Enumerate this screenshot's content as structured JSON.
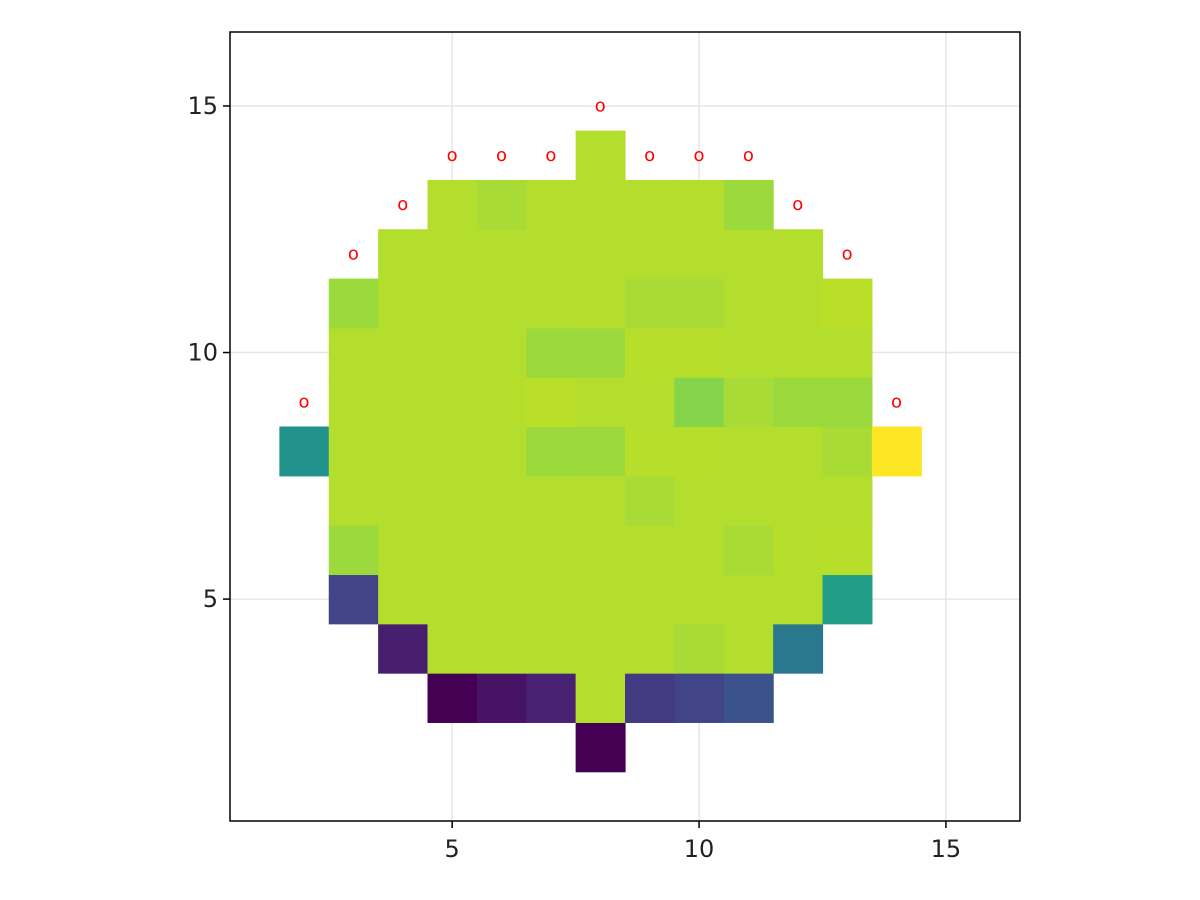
{
  "chart_data": {
    "type": "heatmap",
    "title": "",
    "xlabel": "",
    "ylabel": "",
    "xlim": [
      0.5,
      16.5
    ],
    "ylim": [
      0.5,
      16.5
    ],
    "x_ticks": [
      5,
      10,
      15
    ],
    "y_ticks": [
      5,
      10,
      15
    ],
    "x_tick_labels": [
      "5",
      "10",
      "15"
    ],
    "y_tick_labels": [
      "5",
      "10",
      "15"
    ],
    "grid": true,
    "colormap": "viridis",
    "value_range": [
      0,
      1
    ],
    "cells": [
      {
        "x": 8,
        "y": 2,
        "v": 0.0
      },
      {
        "x": 5,
        "y": 3,
        "v": 0.0
      },
      {
        "x": 6,
        "y": 3,
        "v": 0.05
      },
      {
        "x": 7,
        "y": 3,
        "v": 0.09
      },
      {
        "x": 8,
        "y": 3,
        "v": 0.85
      },
      {
        "x": 9,
        "y": 3,
        "v": 0.17
      },
      {
        "x": 10,
        "y": 3,
        "v": 0.2
      },
      {
        "x": 11,
        "y": 3,
        "v": 0.25
      },
      {
        "x": 4,
        "y": 4,
        "v": 0.08
      },
      {
        "x": 5,
        "y": 4,
        "v": 0.85
      },
      {
        "x": 6,
        "y": 4,
        "v": 0.85
      },
      {
        "x": 7,
        "y": 4,
        "v": 0.85
      },
      {
        "x": 8,
        "y": 4,
        "v": 0.85
      },
      {
        "x": 9,
        "y": 4,
        "v": 0.85
      },
      {
        "x": 10,
        "y": 4,
        "v": 0.84
      },
      {
        "x": 11,
        "y": 4,
        "v": 0.85
      },
      {
        "x": 12,
        "y": 4,
        "v": 0.4
      },
      {
        "x": 3,
        "y": 5,
        "v": 0.2
      },
      {
        "x": 4,
        "y": 5,
        "v": 0.85
      },
      {
        "x": 5,
        "y": 5,
        "v": 0.85
      },
      {
        "x": 6,
        "y": 5,
        "v": 0.85
      },
      {
        "x": 7,
        "y": 5,
        "v": 0.85
      },
      {
        "x": 8,
        "y": 5,
        "v": 0.85
      },
      {
        "x": 9,
        "y": 5,
        "v": 0.85
      },
      {
        "x": 10,
        "y": 5,
        "v": 0.85
      },
      {
        "x": 11,
        "y": 5,
        "v": 0.85
      },
      {
        "x": 12,
        "y": 5,
        "v": 0.85
      },
      {
        "x": 13,
        "y": 5,
        "v": 0.55
      },
      {
        "x": 3,
        "y": 6,
        "v": 0.83
      },
      {
        "x": 4,
        "y": 6,
        "v": 0.85
      },
      {
        "x": 5,
        "y": 6,
        "v": 0.85
      },
      {
        "x": 6,
        "y": 6,
        "v": 0.85
      },
      {
        "x": 7,
        "y": 6,
        "v": 0.85
      },
      {
        "x": 8,
        "y": 6,
        "v": 0.85
      },
      {
        "x": 9,
        "y": 6,
        "v": 0.85
      },
      {
        "x": 10,
        "y": 6,
        "v": 0.85
      },
      {
        "x": 11,
        "y": 6,
        "v": 0.84
      },
      {
        "x": 12,
        "y": 6,
        "v": 0.86
      },
      {
        "x": 13,
        "y": 6,
        "v": 0.87
      },
      {
        "x": 3,
        "y": 7,
        "v": 0.85
      },
      {
        "x": 4,
        "y": 7,
        "v": 0.85
      },
      {
        "x": 5,
        "y": 7,
        "v": 0.85
      },
      {
        "x": 6,
        "y": 7,
        "v": 0.85
      },
      {
        "x": 7,
        "y": 7,
        "v": 0.85
      },
      {
        "x": 8,
        "y": 7,
        "v": 0.86
      },
      {
        "x": 9,
        "y": 7,
        "v": 0.84
      },
      {
        "x": 10,
        "y": 7,
        "v": 0.85
      },
      {
        "x": 11,
        "y": 7,
        "v": 0.85
      },
      {
        "x": 12,
        "y": 7,
        "v": 0.85
      },
      {
        "x": 13,
        "y": 7,
        "v": 0.85
      },
      {
        "x": 2,
        "y": 8,
        "v": 0.5
      },
      {
        "x": 3,
        "y": 8,
        "v": 0.85
      },
      {
        "x": 4,
        "y": 8,
        "v": 0.85
      },
      {
        "x": 5,
        "y": 8,
        "v": 0.85
      },
      {
        "x": 6,
        "y": 8,
        "v": 0.85
      },
      {
        "x": 7,
        "y": 8,
        "v": 0.83
      },
      {
        "x": 8,
        "y": 8,
        "v": 0.83
      },
      {
        "x": 9,
        "y": 8,
        "v": 0.87
      },
      {
        "x": 10,
        "y": 8,
        "v": 0.87
      },
      {
        "x": 11,
        "y": 8,
        "v": 0.85
      },
      {
        "x": 12,
        "y": 8,
        "v": 0.85
      },
      {
        "x": 13,
        "y": 8,
        "v": 0.84
      },
      {
        "x": 14,
        "y": 8,
        "v": 1.0
      },
      {
        "x": 3,
        "y": 9,
        "v": 0.85
      },
      {
        "x": 4,
        "y": 9,
        "v": 0.85
      },
      {
        "x": 5,
        "y": 9,
        "v": 0.85
      },
      {
        "x": 6,
        "y": 9,
        "v": 0.86
      },
      {
        "x": 7,
        "y": 9,
        "v": 0.88
      },
      {
        "x": 8,
        "y": 9,
        "v": 0.85
      },
      {
        "x": 9,
        "y": 9,
        "v": 0.85
      },
      {
        "x": 10,
        "y": 9,
        "v": 0.81
      },
      {
        "x": 11,
        "y": 9,
        "v": 0.84
      },
      {
        "x": 12,
        "y": 9,
        "v": 0.83
      },
      {
        "x": 13,
        "y": 9,
        "v": 0.83
      },
      {
        "x": 3,
        "y": 10,
        "v": 0.85
      },
      {
        "x": 4,
        "y": 10,
        "v": 0.85
      },
      {
        "x": 5,
        "y": 10,
        "v": 0.85
      },
      {
        "x": 6,
        "y": 10,
        "v": 0.85
      },
      {
        "x": 7,
        "y": 10,
        "v": 0.83
      },
      {
        "x": 8,
        "y": 10,
        "v": 0.83
      },
      {
        "x": 9,
        "y": 10,
        "v": 0.87
      },
      {
        "x": 10,
        "y": 10,
        "v": 0.87
      },
      {
        "x": 11,
        "y": 10,
        "v": 0.85
      },
      {
        "x": 12,
        "y": 10,
        "v": 0.85
      },
      {
        "x": 13,
        "y": 10,
        "v": 0.85
      },
      {
        "x": 3,
        "y": 11,
        "v": 0.83
      },
      {
        "x": 4,
        "y": 11,
        "v": 0.85
      },
      {
        "x": 5,
        "y": 11,
        "v": 0.85
      },
      {
        "x": 6,
        "y": 11,
        "v": 0.85
      },
      {
        "x": 7,
        "y": 11,
        "v": 0.85
      },
      {
        "x": 8,
        "y": 11,
        "v": 0.86
      },
      {
        "x": 9,
        "y": 11,
        "v": 0.84
      },
      {
        "x": 10,
        "y": 11,
        "v": 0.84
      },
      {
        "x": 11,
        "y": 11,
        "v": 0.85
      },
      {
        "x": 12,
        "y": 11,
        "v": 0.86
      },
      {
        "x": 13,
        "y": 11,
        "v": 0.88
      },
      {
        "x": 4,
        "y": 12,
        "v": 0.85
      },
      {
        "x": 5,
        "y": 12,
        "v": 0.85
      },
      {
        "x": 6,
        "y": 12,
        "v": 0.85
      },
      {
        "x": 7,
        "y": 12,
        "v": 0.85
      },
      {
        "x": 8,
        "y": 12,
        "v": 0.85
      },
      {
        "x": 9,
        "y": 12,
        "v": 0.85
      },
      {
        "x": 10,
        "y": 12,
        "v": 0.85
      },
      {
        "x": 11,
        "y": 12,
        "v": 0.85
      },
      {
        "x": 12,
        "y": 12,
        "v": 0.85
      },
      {
        "x": 5,
        "y": 13,
        "v": 0.85
      },
      {
        "x": 6,
        "y": 13,
        "v": 0.84
      },
      {
        "x": 7,
        "y": 13,
        "v": 0.85
      },
      {
        "x": 8,
        "y": 13,
        "v": 0.85
      },
      {
        "x": 9,
        "y": 13,
        "v": 0.85
      },
      {
        "x": 10,
        "y": 13,
        "v": 0.86
      },
      {
        "x": 11,
        "y": 13,
        "v": 0.83
      },
      {
        "x": 8,
        "y": 14,
        "v": 0.85
      }
    ],
    "markers": {
      "label": "o",
      "color": "#ff0000",
      "points": [
        [
          8,
          15
        ],
        [
          5,
          14
        ],
        [
          6,
          14
        ],
        [
          7,
          14
        ],
        [
          9,
          14
        ],
        [
          10,
          14
        ],
        [
          11,
          14
        ],
        [
          4,
          13
        ],
        [
          12,
          13
        ],
        [
          3,
          12
        ],
        [
          13,
          12
        ],
        [
          2,
          9
        ],
        [
          14,
          9
        ]
      ]
    }
  }
}
